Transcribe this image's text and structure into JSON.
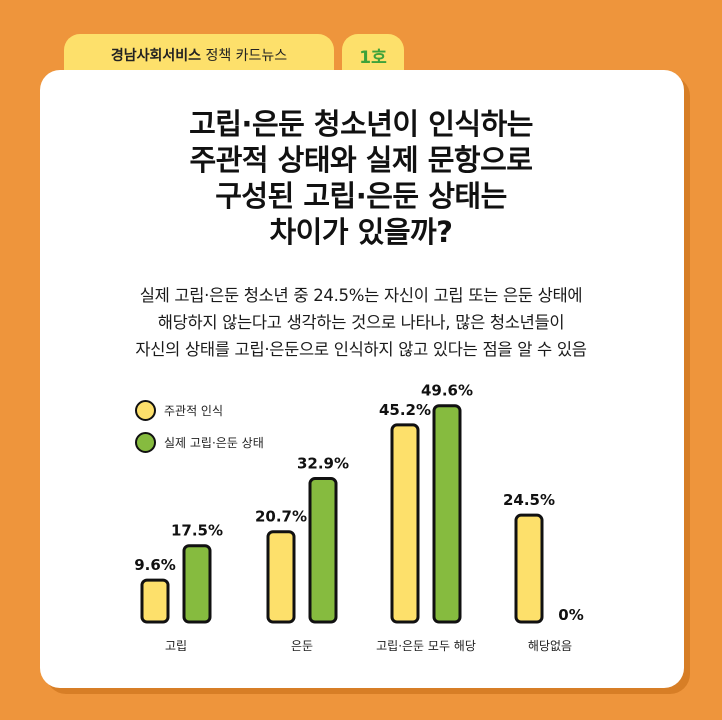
{
  "header": {
    "org": "경남사회서비스",
    "series_label": "정책 카드뉴스",
    "issue": "1호"
  },
  "title_lines": [
    "고립·은둔 청소년이 인식하는",
    "주관적 상태와 실제 문항으로",
    "구성된 고립·은둔 상태는",
    "차이가 있을까?"
  ],
  "subtitle_lines": [
    "실제 고립·은둔 청소년 중 24.5%는 자신이 고립 또는 은둔 상태에",
    "해당하지 않는다고 생각하는 것으로 나타나, 많은 청소년들이",
    "자신의 상태를 고립·은둔으로 인식하지 않고 있다는 점을 알 수 있음"
  ],
  "colors": {
    "background": "#ee953c",
    "tab": "#fde06b",
    "issue_text": "#3ea23a",
    "series_1": "#fde06b",
    "series_2": "#86bb3f",
    "outline": "#111111"
  },
  "chart_data": {
    "type": "bar",
    "categories": [
      "고립",
      "은둔",
      "고립·은둔 모두 해당",
      "해당없음"
    ],
    "series": [
      {
        "name": "주관적 인식",
        "values": [
          9.6,
          20.7,
          45.2,
          24.5
        ],
        "labels": [
          "9.6%",
          "20.7%",
          "45.2%",
          "24.5%"
        ]
      },
      {
        "name": "실제 고립·은둔 상태",
        "values": [
          17.5,
          32.9,
          49.6,
          0
        ],
        "labels": [
          "17.5%",
          "32.9%",
          "49.6%",
          "0%"
        ]
      }
    ],
    "unit": "%",
    "ylim": [
      0,
      50
    ],
    "grid": false,
    "legend": "top-left"
  }
}
